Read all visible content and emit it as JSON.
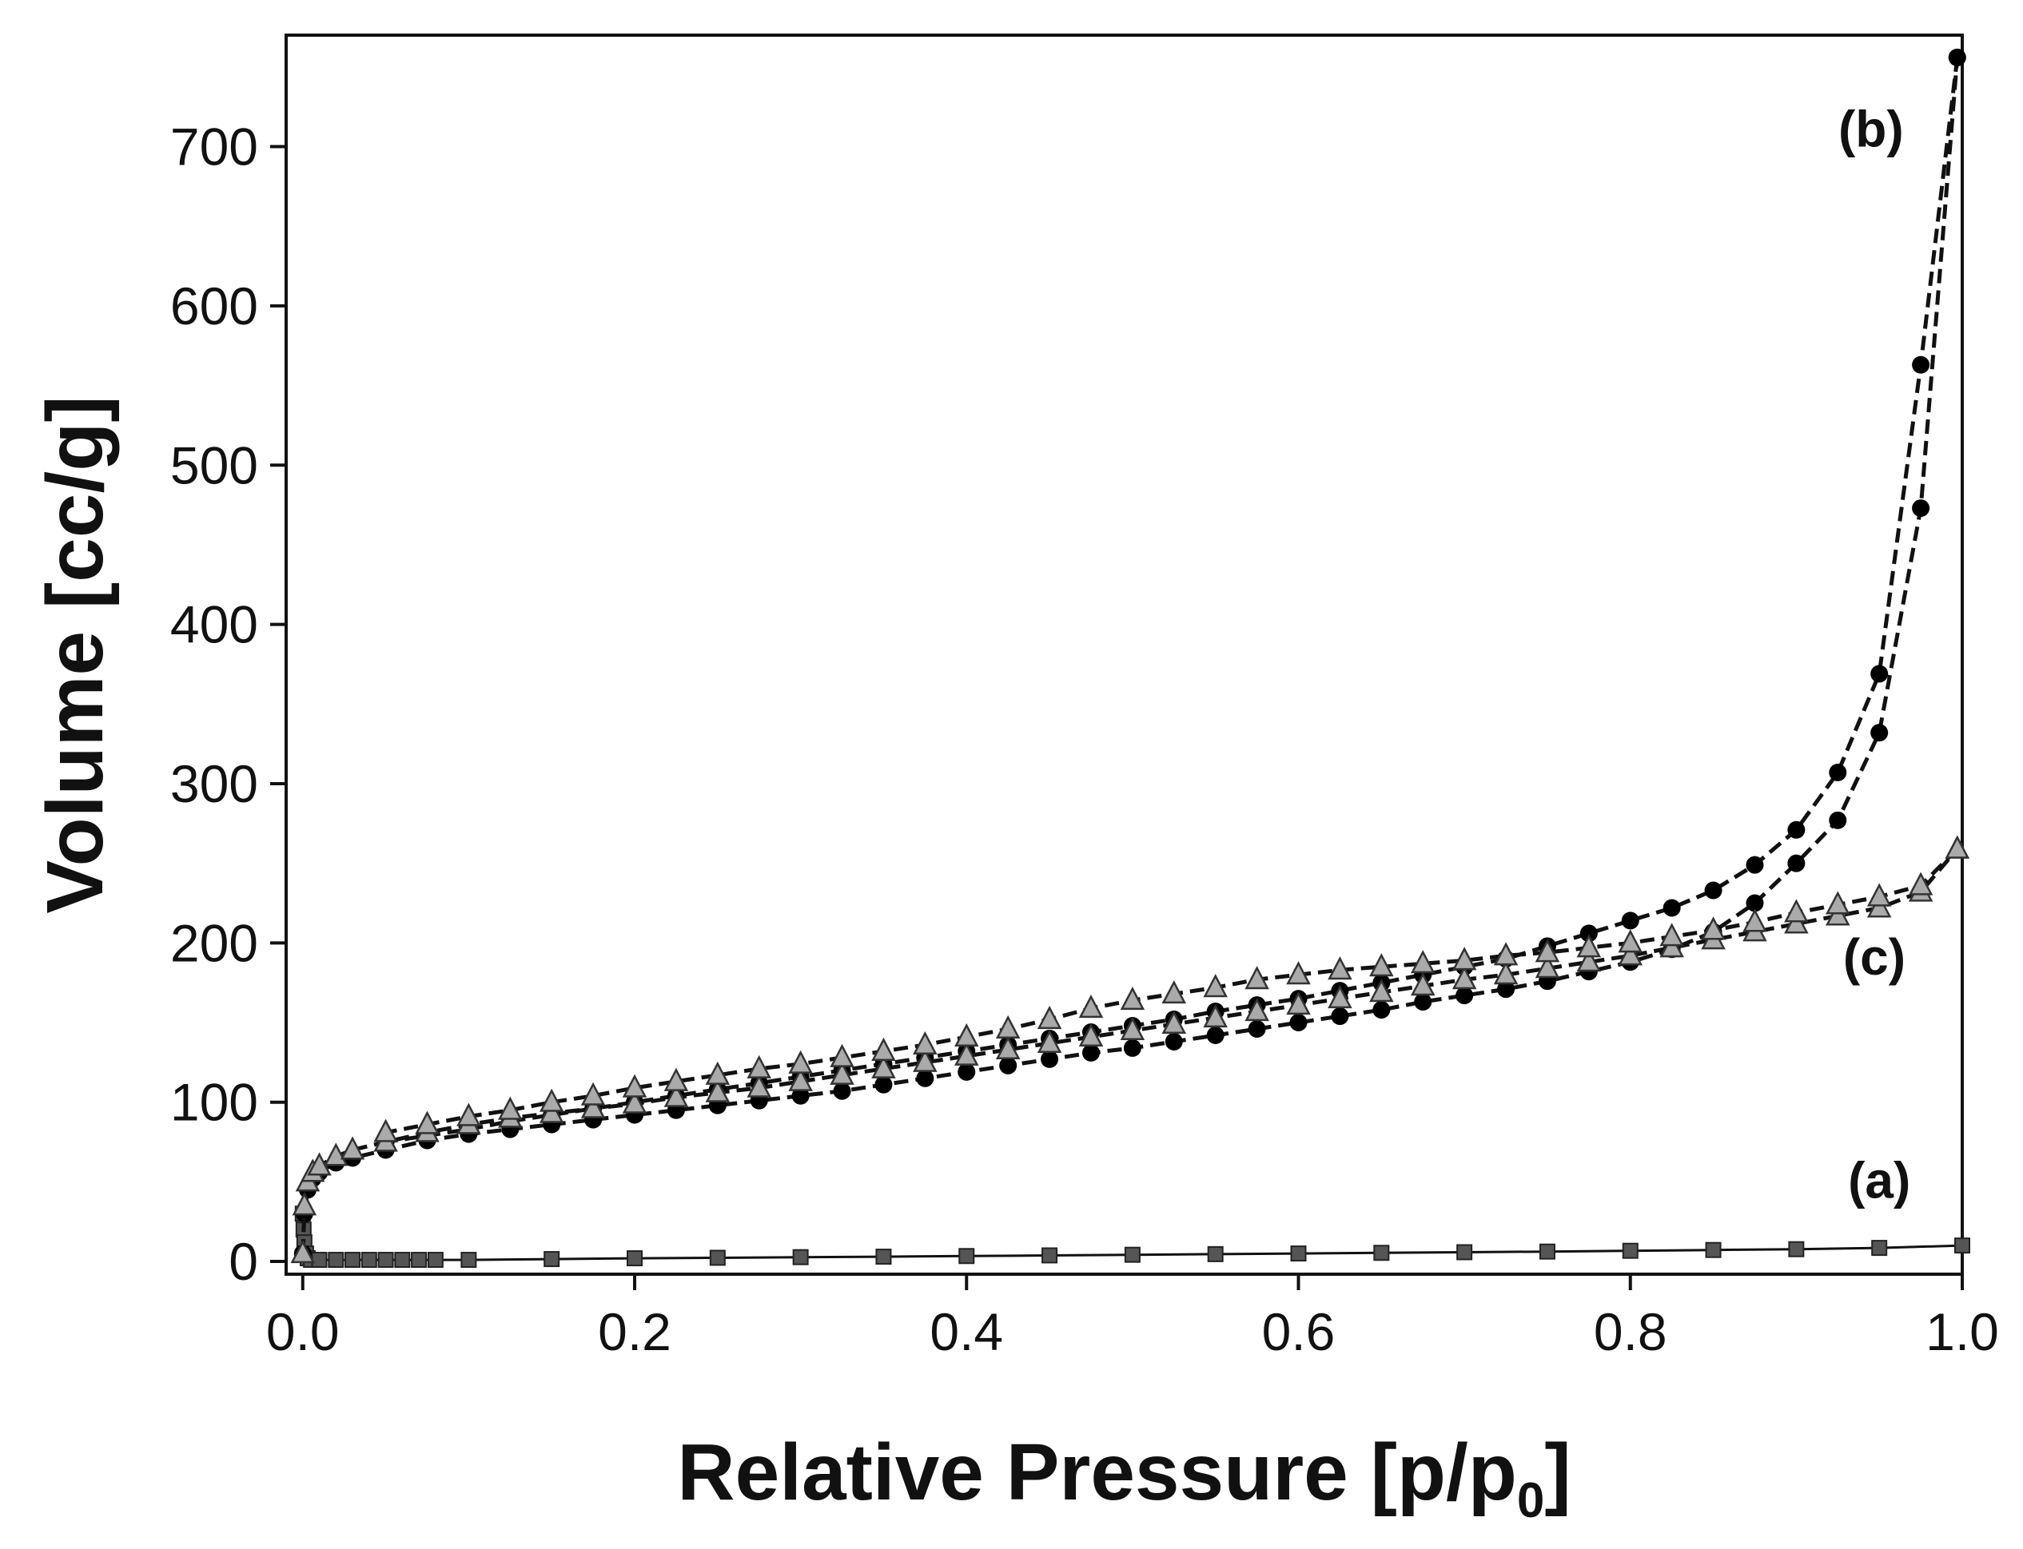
{
  "chart_data": {
    "type": "line",
    "title": "",
    "xlabel": "Relative Pressure [p/p0]",
    "xlabel_main": "Relative Pressure [p/p",
    "xlabel_sub": "0",
    "xlabel_end": "]",
    "ylabel": "Volume [cc/g]",
    "xlim": [
      -0.01,
      1.0
    ],
    "ylim": [
      -8,
      770
    ],
    "xticks": [
      0.0,
      0.2,
      0.4,
      0.6,
      0.8,
      1.0
    ],
    "xtick_labels": [
      "0.0",
      "0.2",
      "0.4",
      "0.6",
      "0.8",
      "1.0"
    ],
    "yticks": [
      0,
      100,
      200,
      300,
      400,
      500,
      600,
      700
    ],
    "ytick_labels": [
      "0",
      "100",
      "200",
      "300",
      "400",
      "500",
      "600",
      "700"
    ],
    "grid": false,
    "annotations": [
      {
        "text": "(b)",
        "x": 0.945,
        "y": 700
      },
      {
        "text": "(c)",
        "x": 0.947,
        "y": 180
      },
      {
        "text": "(a)",
        "x": 0.95,
        "y": 40
      }
    ],
    "series": [
      {
        "label": "(a)",
        "color": "#555555",
        "marker": "square",
        "branch": "adsorption",
        "x": [
          0.0,
          0.0005,
          0.001,
          0.002,
          0.003,
          0.005,
          0.01,
          0.02,
          0.03,
          0.04,
          0.05,
          0.06,
          0.07,
          0.08,
          0.1,
          0.15,
          0.2,
          0.25,
          0.3,
          0.35,
          0.4,
          0.45,
          0.5,
          0.55,
          0.6,
          0.65,
          0.7,
          0.75,
          0.8,
          0.85,
          0.9,
          0.95,
          1.0
        ],
        "y": [
          30,
          20,
          12,
          5,
          2,
          1,
          1,
          1,
          1,
          1,
          1,
          1,
          1,
          1,
          1,
          1.5,
          2,
          2.3,
          2.7,
          3,
          3.4,
          3.8,
          4.2,
          4.6,
          5,
          5.4,
          5.8,
          6.2,
          6.7,
          7.2,
          7.7,
          8.5,
          10
        ]
      },
      {
        "label": "(b)",
        "color": "#000000",
        "marker": "circle",
        "branch": "adsorption",
        "x": [
          0.0,
          0.001,
          0.003,
          0.006,
          0.01,
          0.02,
          0.03,
          0.05,
          0.075,
          0.1,
          0.125,
          0.15,
          0.175,
          0.2,
          0.225,
          0.25,
          0.275,
          0.3,
          0.325,
          0.35,
          0.375,
          0.4,
          0.425,
          0.45,
          0.475,
          0.5,
          0.525,
          0.55,
          0.575,
          0.6,
          0.625,
          0.65,
          0.675,
          0.7,
          0.725,
          0.75,
          0.775,
          0.8,
          0.825,
          0.85,
          0.875,
          0.9,
          0.925,
          0.95,
          0.975,
          0.997
        ],
        "y": [
          5,
          30,
          45,
          52,
          56,
          62,
          65,
          70,
          76,
          80,
          83,
          86,
          89,
          92,
          95,
          98,
          101,
          104,
          107,
          111,
          115,
          119,
          123,
          127,
          131,
          134,
          138,
          142,
          146,
          150,
          154,
          158,
          163,
          167,
          171,
          176,
          182,
          188,
          196,
          207,
          225,
          250,
          277,
          332,
          473,
          756
        ]
      },
      {
        "label": "(b)",
        "color": "#000000",
        "marker": "circle",
        "branch": "desorption",
        "x": [
          0.997,
          0.975,
          0.95,
          0.925,
          0.9,
          0.875,
          0.85,
          0.825,
          0.8,
          0.775,
          0.75,
          0.725,
          0.7,
          0.675,
          0.65,
          0.625,
          0.6,
          0.575,
          0.55,
          0.525,
          0.5,
          0.475,
          0.45,
          0.425,
          0.4,
          0.375,
          0.35,
          0.325,
          0.3,
          0.275,
          0.25,
          0.225,
          0.2,
          0.175,
          0.15,
          0.125,
          0.1,
          0.075,
          0.05
        ],
        "y": [
          756,
          563,
          369,
          307,
          271,
          249,
          233,
          222,
          214,
          206,
          198,
          190,
          185,
          180,
          175,
          170,
          165,
          161,
          157,
          152,
          148,
          144,
          140,
          136,
          132,
          128,
          124,
          120,
          116,
          112,
          108,
          104,
          100,
          96,
          92,
          88,
          83,
          79,
          75
        ]
      },
      {
        "label": "(c)",
        "color": "#aaaaaa",
        "marker": "triangle",
        "branch": "adsorption",
        "x": [
          0.0,
          0.001,
          0.003,
          0.006,
          0.01,
          0.02,
          0.03,
          0.05,
          0.075,
          0.1,
          0.125,
          0.15,
          0.175,
          0.2,
          0.225,
          0.25,
          0.275,
          0.3,
          0.325,
          0.35,
          0.375,
          0.4,
          0.425,
          0.45,
          0.475,
          0.5,
          0.525,
          0.55,
          0.575,
          0.6,
          0.625,
          0.65,
          0.675,
          0.7,
          0.725,
          0.75,
          0.775,
          0.8,
          0.825,
          0.85,
          0.875,
          0.9,
          0.925,
          0.95,
          0.975,
          0.997
        ],
        "y": [
          5,
          35,
          50,
          56,
          60,
          66,
          70,
          75,
          81,
          86,
          90,
          93,
          96,
          99,
          103,
          106,
          109,
          113,
          117,
          121,
          125,
          129,
          133,
          137,
          141,
          145,
          149,
          153,
          157,
          161,
          165,
          169,
          173,
          177,
          180,
          184,
          188,
          192,
          197,
          202,
          207,
          212,
          217,
          222,
          232,
          259
        ]
      },
      {
        "label": "(c)",
        "color": "#aaaaaa",
        "marker": "triangle",
        "branch": "desorption",
        "x": [
          0.997,
          0.975,
          0.95,
          0.925,
          0.9,
          0.875,
          0.85,
          0.825,
          0.8,
          0.775,
          0.75,
          0.725,
          0.7,
          0.675,
          0.65,
          0.625,
          0.6,
          0.575,
          0.55,
          0.525,
          0.5,
          0.475,
          0.45,
          0.425,
          0.4,
          0.375,
          0.35,
          0.325,
          0.3,
          0.275,
          0.25,
          0.225,
          0.2,
          0.175,
          0.15,
          0.125,
          0.1,
          0.075,
          0.05
        ],
        "y": [
          259,
          236,
          229,
          224,
          219,
          213,
          208,
          204,
          200,
          197,
          194,
          192,
          189,
          187,
          185,
          183,
          180,
          177,
          172,
          168,
          164,
          159,
          152,
          146,
          141,
          136,
          132,
          128,
          124,
          121,
          117,
          113,
          109,
          104,
          100,
          95,
          91,
          86,
          81
        ]
      }
    ]
  }
}
